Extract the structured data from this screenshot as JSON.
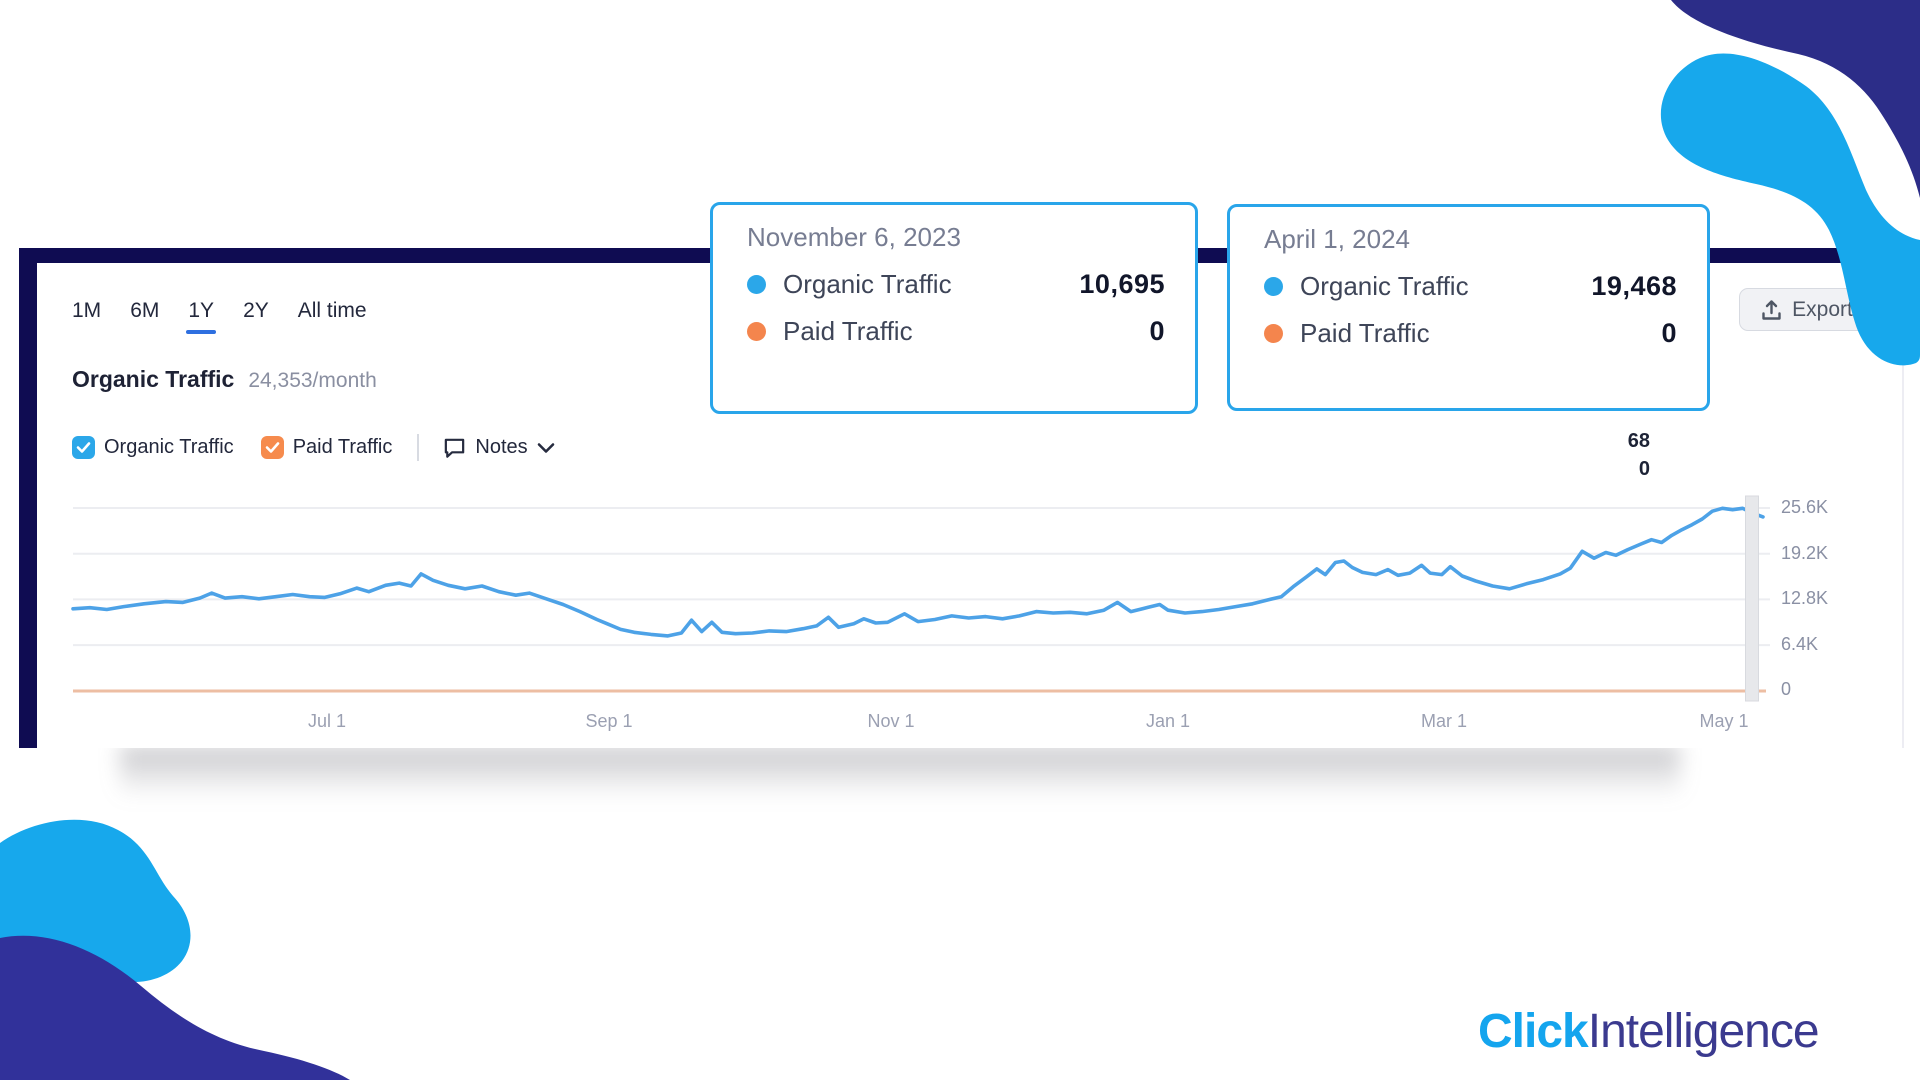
{
  "panel": {
    "tabs": [
      "1M",
      "6M",
      "1Y",
      "2Y",
      "All time"
    ],
    "active_tab": "1Y",
    "header": {
      "title": "Organic Traffic",
      "rate": "24,353/month"
    },
    "legend": {
      "organic": {
        "label": "Organic Traffic",
        "checked": true,
        "color": "#2BA7E9"
      },
      "paid": {
        "label": "Paid Traffic",
        "checked": true,
        "color": "#F68B4D"
      },
      "notes": {
        "label": "Notes"
      }
    },
    "export_label": "Export",
    "partial_tooltip": {
      "line1": "68",
      "line2": "0"
    }
  },
  "tooltips": [
    {
      "date": "November 6, 2023",
      "rows": [
        {
          "label": "Organic Traffic",
          "value": "10,695",
          "dot_color": "#2BA7E9"
        },
        {
          "label": "Paid Traffic",
          "value": "0",
          "dot_color": "#F4854D"
        }
      ]
    },
    {
      "date": "April 1, 2024",
      "rows": [
        {
          "label": "Organic Traffic",
          "value": "19,468",
          "dot_color": "#2BA7E9"
        },
        {
          "label": "Paid Traffic",
          "value": "0",
          "dot_color": "#F4854D"
        }
      ]
    }
  ],
  "chart_data": {
    "type": "line",
    "title": "Organic Traffic",
    "subtitle_rate": "24,353/month",
    "x_axis": {
      "tick_labels": [
        "Jul 1",
        "Sep 1",
        "Nov 1",
        "Jan 1",
        "Mar 1",
        "May 1"
      ],
      "range": "1Y"
    },
    "y_axis": {
      "tick_labels": [
        "25.6K",
        "19.2K",
        "12.8K",
        "6.4K",
        "0"
      ],
      "tick_values": [
        25600,
        19200,
        12800,
        6400,
        0
      ],
      "min": 0,
      "max": 27000,
      "grid": true
    },
    "legend_position": "top-left",
    "series": [
      {
        "name": "Organic Traffic",
        "color": "#4DA2E7",
        "points": [
          [
            0.0,
            11400
          ],
          [
            0.01,
            11550
          ],
          [
            0.02,
            11300
          ],
          [
            0.03,
            11700
          ],
          [
            0.042,
            12100
          ],
          [
            0.055,
            12400
          ],
          [
            0.065,
            12300
          ],
          [
            0.075,
            12900
          ],
          [
            0.082,
            13600
          ],
          [
            0.09,
            12900
          ],
          [
            0.1,
            13100
          ],
          [
            0.11,
            12800
          ],
          [
            0.12,
            13100
          ],
          [
            0.13,
            13400
          ],
          [
            0.14,
            13100
          ],
          [
            0.149,
            13000
          ],
          [
            0.158,
            13500
          ],
          [
            0.168,
            14300
          ],
          [
            0.175,
            13800
          ],
          [
            0.185,
            14700
          ],
          [
            0.193,
            15000
          ],
          [
            0.2,
            14600
          ],
          [
            0.206,
            16300
          ],
          [
            0.213,
            15400
          ],
          [
            0.222,
            14700
          ],
          [
            0.232,
            14200
          ],
          [
            0.242,
            14600
          ],
          [
            0.252,
            13800
          ],
          [
            0.262,
            13300
          ],
          [
            0.27,
            13600
          ],
          [
            0.28,
            12800
          ],
          [
            0.29,
            12000
          ],
          [
            0.3,
            11000
          ],
          [
            0.31,
            9900
          ],
          [
            0.316,
            9300
          ],
          [
            0.324,
            8500
          ],
          [
            0.332,
            8100
          ],
          [
            0.342,
            7800
          ],
          [
            0.352,
            7600
          ],
          [
            0.36,
            8000
          ],
          [
            0.366,
            9800
          ],
          [
            0.372,
            8200
          ],
          [
            0.378,
            9500
          ],
          [
            0.384,
            8100
          ],
          [
            0.392,
            7900
          ],
          [
            0.402,
            8000
          ],
          [
            0.412,
            8300
          ],
          [
            0.422,
            8200
          ],
          [
            0.432,
            8600
          ],
          [
            0.44,
            9000
          ],
          [
            0.447,
            10200
          ],
          [
            0.453,
            8800
          ],
          [
            0.462,
            9300
          ],
          [
            0.468,
            10000
          ],
          [
            0.475,
            9400
          ],
          [
            0.482,
            9500
          ],
          [
            0.492,
            10695
          ],
          [
            0.5,
            9600
          ],
          [
            0.51,
            9900
          ],
          [
            0.52,
            10400
          ],
          [
            0.53,
            10100
          ],
          [
            0.54,
            10300
          ],
          [
            0.55,
            10000
          ],
          [
            0.56,
            10400
          ],
          [
            0.57,
            11000
          ],
          [
            0.58,
            10800
          ],
          [
            0.59,
            10900
          ],
          [
            0.6,
            10700
          ],
          [
            0.61,
            11200
          ],
          [
            0.618,
            12300
          ],
          [
            0.626,
            11000
          ],
          [
            0.636,
            11600
          ],
          [
            0.643,
            12000
          ],
          [
            0.648,
            11200
          ],
          [
            0.658,
            10800
          ],
          [
            0.668,
            11000
          ],
          [
            0.678,
            11300
          ],
          [
            0.688,
            11700
          ],
          [
            0.698,
            12100
          ],
          [
            0.708,
            12700
          ],
          [
            0.715,
            13100
          ],
          [
            0.722,
            14500
          ],
          [
            0.73,
            15900
          ],
          [
            0.736,
            17000
          ],
          [
            0.741,
            16200
          ],
          [
            0.747,
            17900
          ],
          [
            0.752,
            18100
          ],
          [
            0.757,
            17200
          ],
          [
            0.763,
            16500
          ],
          [
            0.771,
            16200
          ],
          [
            0.778,
            16900
          ],
          [
            0.784,
            16100
          ],
          [
            0.791,
            16400
          ],
          [
            0.798,
            17500
          ],
          [
            0.803,
            16400
          ],
          [
            0.81,
            16200
          ],
          [
            0.815,
            17300
          ],
          [
            0.822,
            16000
          ],
          [
            0.83,
            15300
          ],
          [
            0.84,
            14600
          ],
          [
            0.85,
            14200
          ],
          [
            0.86,
            14900
          ],
          [
            0.87,
            15500
          ],
          [
            0.88,
            16300
          ],
          [
            0.886,
            17100
          ],
          [
            0.893,
            19468
          ],
          [
            0.9,
            18500
          ],
          [
            0.907,
            19300
          ],
          [
            0.913,
            18900
          ],
          [
            0.92,
            19700
          ],
          [
            0.928,
            20500
          ],
          [
            0.934,
            21100
          ],
          [
            0.94,
            20700
          ],
          [
            0.946,
            21700
          ],
          [
            0.952,
            22500
          ],
          [
            0.958,
            23200
          ],
          [
            0.964,
            24000
          ],
          [
            0.97,
            25100
          ],
          [
            0.976,
            25500
          ],
          [
            0.982,
            25300
          ],
          [
            0.988,
            25500
          ],
          [
            0.993,
            24900
          ],
          [
            1.0,
            24300
          ]
        ]
      },
      {
        "name": "Paid Traffic",
        "color": "#EDBEA3",
        "constant_value": 0
      }
    ],
    "annotations": [
      {
        "date": "November 6, 2023",
        "organic": 10695,
        "paid": 0
      },
      {
        "date": "April 1, 2024",
        "organic": 19468,
        "paid": 0
      }
    ]
  },
  "logo": {
    "part1": "Click",
    "part2": "Intelligence",
    "color1": "#14A5EE",
    "color2": "#3B3A8F"
  },
  "colors": {
    "panel_border_navy": "#0F0C52",
    "blob_navy": "#2D2E88",
    "blob_light_blue": "#17A8EC",
    "line_blue": "#4DA2E7",
    "paid_line": "#EDBEA3",
    "grid": "#ECEDF1",
    "tooltip_border": "#29A5EA",
    "tab_active_underline": "#2E6FE0",
    "export_bg": "#F1F2F5"
  }
}
